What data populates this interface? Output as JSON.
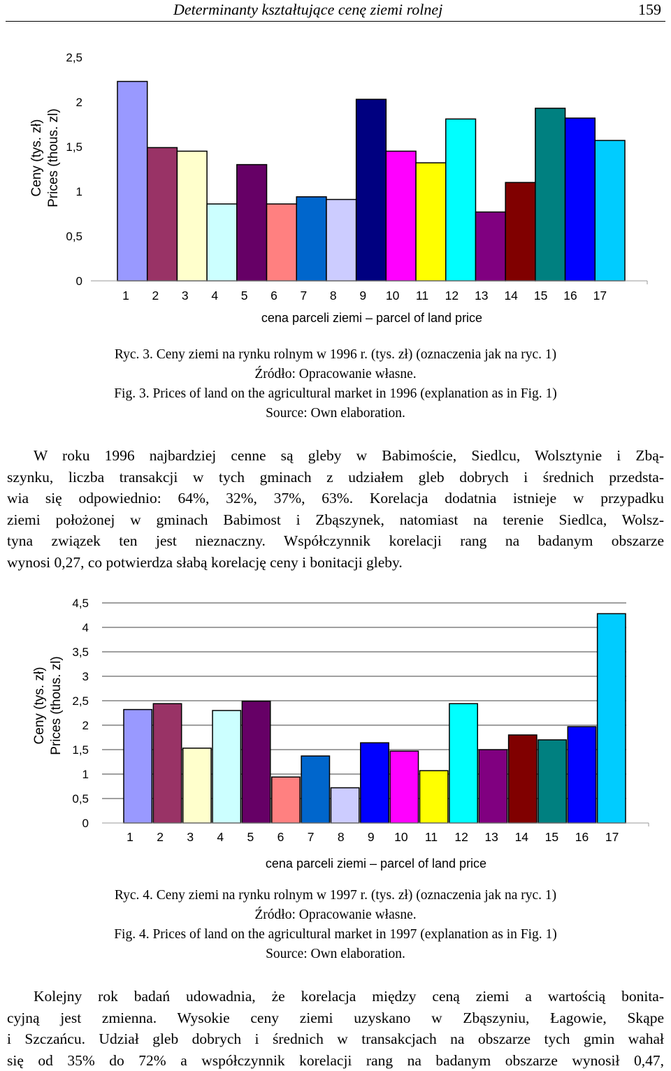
{
  "header": {
    "running_title": "Determinanty kształtujące cenę ziemi rolnej",
    "page_number": "159"
  },
  "figure1": {
    "caption_lines": [
      "Ryc. 3. Ceny ziemi na rynku rolnym w 1996 r. (tys. zł) (oznaczenia jak na ryc. 1)",
      "Źródło: Opracowanie własne.",
      "Fig. 3. Prices of land on the agricultural market in 1996 (explanation as in Fig. 1)",
      "Source: Own elaboration."
    ]
  },
  "paragraph1": {
    "lines": [
      "W roku 1996 najbardziej cenne są gleby w Babimoście, Siedlcu, Wolsztynie i Zbą-",
      "szynku, liczba transakcji w tych gminach z udziałem gleb dobrych i średnich przedsta-",
      "wia się odpowiednio: 64%, 32%, 37%, 63%. Korelacja dodatnia istnieje w przypadku",
      "ziemi położonej w gminach Babimost i Zbąszynek, natomiast na terenie Siedlca, Wolsz-",
      "tyna związek ten jest nieznaczny. Współczynnik korelacji rang na badanym obszarze",
      "wynosi 0,27, co potwierdza słabą korelację ceny i bonitacji gleby."
    ]
  },
  "figure2": {
    "caption_lines": [
      "Ryc. 4. Ceny ziemi na rynku rolnym w 1997 r. (tys. zł) (oznaczenia jak na ryc. 1)",
      "Źródło: Opracowanie własne.",
      "Fig. 4. Prices of land on the agricultural market in 1997 (explanation as in Fig. 1)",
      "Source: Own elaboration."
    ]
  },
  "paragraph2": {
    "lines": [
      "Kolejny rok badań udowadnia, że korelacja między ceną ziemi a wartością bonita-",
      "cyjną jest zmienna. Wysokie ceny ziemi uzyskano w Zbąszyniu, Łagowie, Skąpe",
      "i Szczańcu. Udział gleb dobrych i średnich w transakcjach na obszarze tych gmin wahał",
      "się od 35% do 72% a współczynnik korelacji rang na badanym obszarze wynosił 0,47,"
    ]
  },
  "chart_data": [
    {
      "type": "bar",
      "categories": [
        "1",
        "2",
        "3",
        "4",
        "5",
        "6",
        "7",
        "8",
        "9",
        "10",
        "11",
        "12",
        "13",
        "14",
        "15",
        "16",
        "17"
      ],
      "values": [
        2.23,
        1.49,
        1.45,
        0.86,
        1.3,
        0.86,
        0.94,
        0.91,
        2.03,
        1.45,
        1.32,
        1.81,
        0.77,
        1.1,
        1.93,
        1.82,
        1.57
      ],
      "colors": [
        "#9999ff",
        "#993366",
        "#ffffcc",
        "#ccffff",
        "#660066",
        "#ff8080",
        "#0066cc",
        "#ccccff",
        "#000080",
        "#ff00ff",
        "#ffff00",
        "#00ffff",
        "#800080",
        "#800000",
        "#008080",
        "#0000ff",
        "#00ccff"
      ],
      "title": "",
      "xlabel": "cena parceli ziemi – parcel of land price",
      "ylabel_lines": [
        "Ceny (tys. zł)",
        "Prices (thous. zl)"
      ],
      "ylim": [
        0,
        2.5
      ],
      "y_ticks": [
        "0",
        "0,5",
        "1",
        "1,5",
        "2",
        "2,5"
      ],
      "grid": false,
      "legend": "none"
    },
    {
      "type": "bar",
      "categories": [
        "1",
        "2",
        "3",
        "4",
        "5",
        "6",
        "7",
        "8",
        "9",
        "10",
        "11",
        "12",
        "13",
        "14",
        "15",
        "16",
        "17"
      ],
      "values": [
        2.32,
        2.44,
        1.53,
        2.3,
        2.49,
        0.94,
        1.37,
        0.72,
        1.64,
        1.47,
        1.07,
        2.44,
        1.5,
        1.8,
        1.7,
        1.97,
        4.28
      ],
      "colors": [
        "#9999ff",
        "#993366",
        "#ffffcc",
        "#ccffff",
        "#660066",
        "#ff8080",
        "#0066cc",
        "#ccccff",
        "#0000ff",
        "#ff00ff",
        "#ffff00",
        "#00ffff",
        "#800080",
        "#800000",
        "#008080",
        "#0000ff",
        "#00ccff"
      ],
      "title": "",
      "xlabel": "cena parceli ziemi – parcel of land price",
      "ylabel_lines": [
        "Ceny (tys. zł)",
        "Prices (thous. zl)"
      ],
      "ylim": [
        0,
        4.5
      ],
      "y_ticks": [
        "0",
        "0,5",
        "1",
        "1,5",
        "2",
        "2,5",
        "3",
        "3,5",
        "4",
        "4,5"
      ],
      "grid": true,
      "legend": "none"
    }
  ]
}
